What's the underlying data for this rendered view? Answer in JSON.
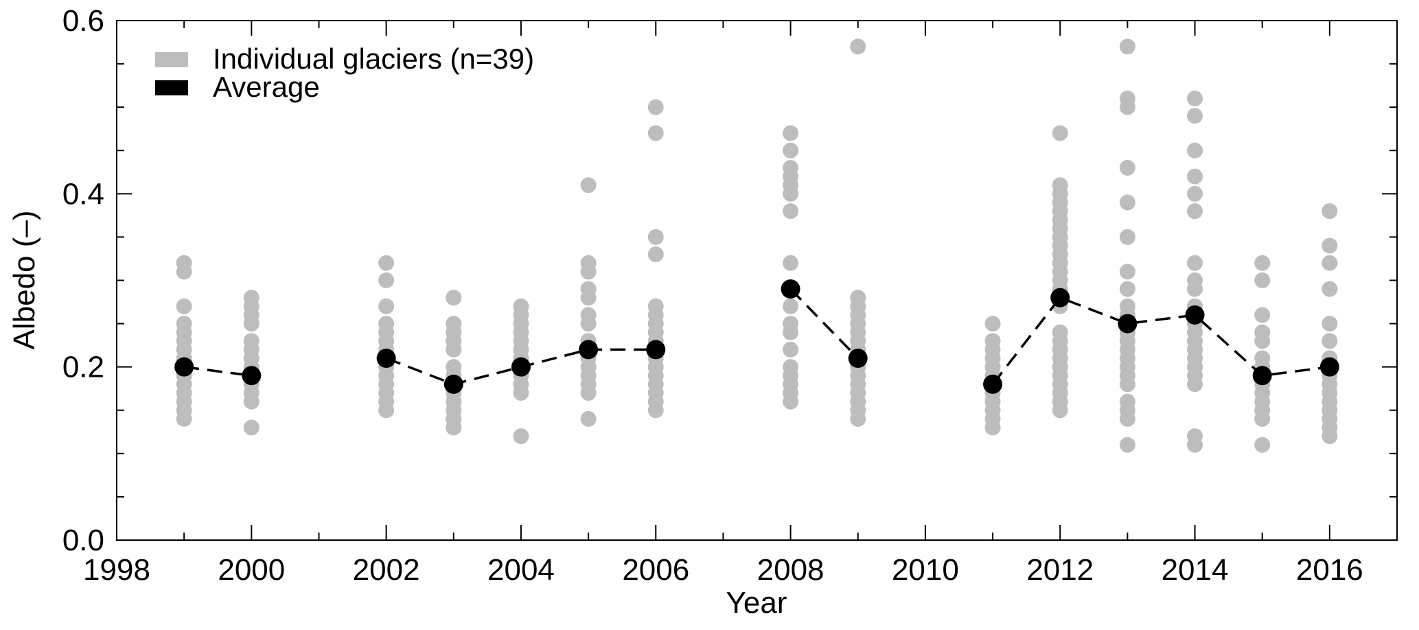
{
  "chart_data": {
    "type": "scatter",
    "title": "",
    "xlabel": "Year",
    "ylabel": "Albedo (–)",
    "xlim": [
      1998,
      2017
    ],
    "ylim": [
      0.0,
      0.6
    ],
    "xticks": [
      "1998",
      "2000",
      "2002",
      "2004",
      "2006",
      "2008",
      "2010",
      "2012",
      "2014",
      "2016"
    ],
    "yticks": [
      "0.0",
      "0.2",
      "0.4",
      "0.6"
    ],
    "grid": false,
    "legend_position": "top-left",
    "legend": [
      {
        "label": "Individual glaciers (n=39)",
        "color": "#bdbdbd"
      },
      {
        "label": "Average",
        "color": "#000000"
      }
    ],
    "series": [
      {
        "name": "Individual glaciers (n=39)",
        "color": "#bdbdbd",
        "style": "points",
        "points": [
          {
            "x": 1999,
            "values": [
              0.14,
              0.15,
              0.16,
              0.17,
              0.18,
              0.19,
              0.2,
              0.21,
              0.22,
              0.23,
              0.24,
              0.25,
              0.27,
              0.31,
              0.32
            ]
          },
          {
            "x": 2000,
            "values": [
              0.13,
              0.16,
              0.17,
              0.18,
              0.19,
              0.2,
              0.21,
              0.22,
              0.23,
              0.25,
              0.26,
              0.27,
              0.28
            ]
          },
          {
            "x": 2002,
            "values": [
              0.15,
              0.16,
              0.17,
              0.18,
              0.19,
              0.2,
              0.21,
              0.22,
              0.23,
              0.24,
              0.25,
              0.27,
              0.3,
              0.32
            ]
          },
          {
            "x": 2003,
            "values": [
              0.13,
              0.14,
              0.15,
              0.16,
              0.17,
              0.18,
              0.19,
              0.2,
              0.22,
              0.23,
              0.24,
              0.25,
              0.28
            ]
          },
          {
            "x": 2004,
            "values": [
              0.12,
              0.17,
              0.18,
              0.19,
              0.2,
              0.21,
              0.22,
              0.23,
              0.24,
              0.25,
              0.26,
              0.27
            ]
          },
          {
            "x": 2005,
            "values": [
              0.14,
              0.17,
              0.18,
              0.19,
              0.2,
              0.21,
              0.22,
              0.23,
              0.25,
              0.26,
              0.28,
              0.29,
              0.31,
              0.32,
              0.41
            ]
          },
          {
            "x": 2006,
            "values": [
              0.15,
              0.16,
              0.17,
              0.18,
              0.19,
              0.2,
              0.21,
              0.22,
              0.23,
              0.24,
              0.25,
              0.26,
              0.27,
              0.33,
              0.35,
              0.47,
              0.5
            ]
          },
          {
            "x": 2008,
            "values": [
              0.16,
              0.17,
              0.18,
              0.19,
              0.2,
              0.22,
              0.24,
              0.25,
              0.27,
              0.29,
              0.32,
              0.38,
              0.4,
              0.41,
              0.42,
              0.43,
              0.45,
              0.47
            ]
          },
          {
            "x": 2009,
            "values": [
              0.14,
              0.15,
              0.16,
              0.17,
              0.18,
              0.19,
              0.2,
              0.21,
              0.22,
              0.23,
              0.24,
              0.25,
              0.26,
              0.27,
              0.28,
              0.57
            ]
          },
          {
            "x": 2011,
            "values": [
              0.13,
              0.14,
              0.15,
              0.16,
              0.17,
              0.18,
              0.19,
              0.2,
              0.21,
              0.22,
              0.23,
              0.25
            ]
          },
          {
            "x": 2012,
            "values": [
              0.15,
              0.16,
              0.17,
              0.18,
              0.19,
              0.2,
              0.21,
              0.22,
              0.23,
              0.24,
              0.27,
              0.28,
              0.29,
              0.3,
              0.31,
              0.32,
              0.33,
              0.34,
              0.35,
              0.36,
              0.37,
              0.38,
              0.39,
              0.4,
              0.41,
              0.47
            ]
          },
          {
            "x": 2013,
            "values": [
              0.11,
              0.14,
              0.15,
              0.16,
              0.18,
              0.19,
              0.2,
              0.21,
              0.22,
              0.23,
              0.24,
              0.25,
              0.26,
              0.27,
              0.29,
              0.31,
              0.35,
              0.39,
              0.43,
              0.5,
              0.51,
              0.57
            ]
          },
          {
            "x": 2014,
            "values": [
              0.11,
              0.12,
              0.18,
              0.19,
              0.2,
              0.21,
              0.22,
              0.23,
              0.24,
              0.25,
              0.26,
              0.27,
              0.29,
              0.3,
              0.32,
              0.38,
              0.4,
              0.42,
              0.45,
              0.49,
              0.51
            ]
          },
          {
            "x": 2015,
            "values": [
              0.11,
              0.14,
              0.15,
              0.16,
              0.17,
              0.18,
              0.19,
              0.2,
              0.21,
              0.23,
              0.24,
              0.26,
              0.3,
              0.32
            ]
          },
          {
            "x": 2016,
            "values": [
              0.12,
              0.13,
              0.14,
              0.15,
              0.16,
              0.17,
              0.18,
              0.19,
              0.2,
              0.21,
              0.23,
              0.25,
              0.29,
              0.32,
              0.34,
              0.38
            ]
          }
        ]
      },
      {
        "name": "Average",
        "color": "#000000",
        "style": "dashed-line-with-points",
        "segments": [
          [
            {
              "x": 1999,
              "y": 0.2
            },
            {
              "x": 2000,
              "y": 0.19
            }
          ],
          [
            {
              "x": 2002,
              "y": 0.21
            },
            {
              "x": 2003,
              "y": 0.18
            },
            {
              "x": 2004,
              "y": 0.2
            },
            {
              "x": 2005,
              "y": 0.22
            },
            {
              "x": 2006,
              "y": 0.22
            }
          ],
          [
            {
              "x": 2008,
              "y": 0.29
            },
            {
              "x": 2009,
              "y": 0.21
            }
          ],
          [
            {
              "x": 2011,
              "y": 0.18
            },
            {
              "x": 2012,
              "y": 0.28
            },
            {
              "x": 2013,
              "y": 0.25
            },
            {
              "x": 2014,
              "y": 0.26
            },
            {
              "x": 2015,
              "y": 0.19
            },
            {
              "x": 2016,
              "y": 0.2
            }
          ]
        ]
      }
    ]
  }
}
